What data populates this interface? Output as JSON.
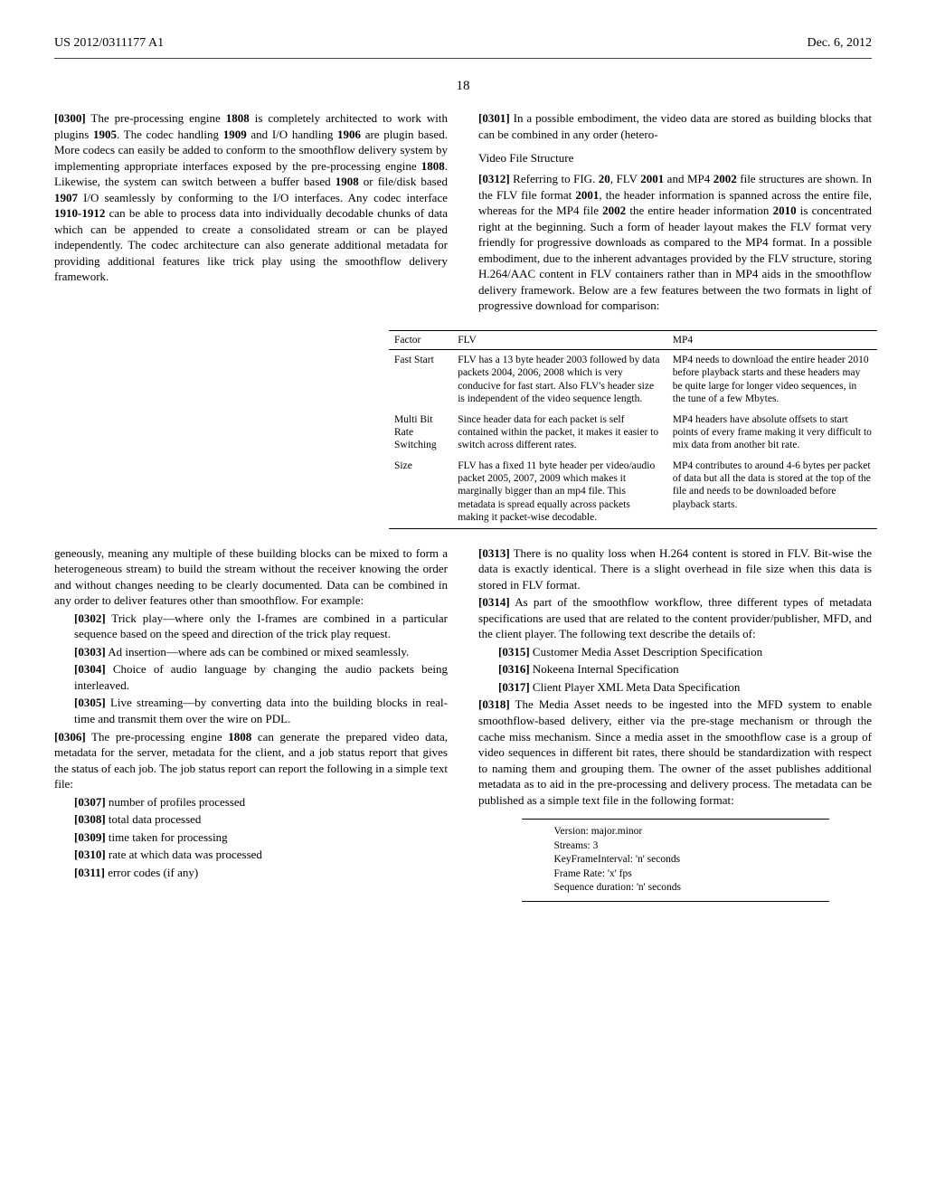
{
  "header": {
    "pub_no": "US 2012/0311177 A1",
    "date": "Dec. 6, 2012"
  },
  "page_number": "18",
  "left": {
    "p0300": "[0300]   The pre-processing engine 1808 is completely architected to work with plugins 1905. The codec handling 1909 and I/O handling 1906 are plugin based. More codecs can easily be added to conform to the smoothflow delivery system by implementing appropriate interfaces exposed by the pre-processing engine 1808. Likewise, the system can switch between a buffer based 1908 or file/disk based 1907 I/O seamlessly by conforming to the I/O interfaces. Any codec interface 1910-1912 can be able to process data into individually decodable chunks of data which can be appended to create a consolidated stream or can be played independently. The codec architecture can also generate additional metadata for providing additional features like trick play using the smoothflow delivery framework.",
    "p0301": "[0301]   In a possible embodiment, the video data are stored as building blocks that can be combined in any order (hetero-",
    "p_cont": "geneously, meaning any multiple of these building blocks can be mixed to form a heterogeneous stream) to build the stream without the receiver knowing the order and without changes needing to be clearly documented. Data can be combined in any order to deliver features other than smoothflow. For example:",
    "p0302": "[0302]   Trick play—where only the I-frames are combined in a particular sequence based on the speed and direction of the trick play request.",
    "p0303": "[0303]   Ad insertion—where ads can be combined or mixed seamlessly.",
    "p0304": "[0304]   Choice of audio language by changing the audio packets being interleaved.",
    "p0305": "[0305]   Live streaming—by converting data into the building blocks in real-time and transmit them over the wire on PDL.",
    "p0306": "[0306]   The pre-processing engine 1808 can generate the prepared video data, metadata for the server, metadata for the client, and a job status report that gives the status of each job. The job status report can report the following in a simple text file:",
    "p0307": "[0307]   number of profiles processed",
    "p0308": "[0308]   total data processed",
    "p0309": "[0309]   time taken for processing",
    "p0310": "[0310]   rate at which data was processed",
    "p0311": "[0311]   error codes (if any)"
  },
  "right": {
    "heading_vfs": "Video File Structure",
    "p0312": "[0312]   Referring to FIG. 20, FLV 2001 and MP4 2002 file structures are shown. In the FLV file format 2001, the header information is spanned across the entire file, whereas for the MP4 file 2002 the entire header information 2010 is concentrated right at the beginning. Such a form of header layout makes the FLV format very friendly for progressive downloads as compared to the MP4 format. In a possible embodiment, due to the inherent advantages provided by the FLV structure, storing H.264/AAC content in FLV containers rather than in MP4 aids in the smoothflow delivery framework. Below are a few features between the two formats in light of progressive download for comparison:",
    "p0313": "[0313]   There is no quality loss when H.264 content is stored in FLV. Bit-wise the data is exactly identical. There is a slight overhead in file size when this data is stored in FLV format.",
    "p0314": "[0314]   As part of the smoothflow workflow, three different types of metadata specifications are used that are related to the content provider/publisher, MFD, and the client player. The following text describe the details of:",
    "p0315": "[0315]   Customer Media Asset Description Specification",
    "p0316": "[0316]   Nokeena Internal Specification",
    "p0317": "[0317]   Client Player XML Meta Data Specification",
    "p0318": "[0318]   The Media Asset needs to be ingested into the MFD system to enable smoothflow-based delivery, either via the pre-stage mechanism or through the cache miss mechanism. Since a media asset in the smoothflow case is a group of video sequences in different bit rates, there should be standardization with respect to naming them and grouping them. The owner of the asset publishes additional metadata as to aid in the pre-processing and delivery process. The metadata can be published as a simple text file in the following format:",
    "meta1": "Version: major.minor",
    "meta2": "Streams: 3",
    "meta3": "KeyFrameInterval: 'n' seconds",
    "meta4": "Frame Rate: 'x' fps",
    "meta5": "Sequence duration: 'n' seconds"
  },
  "table": {
    "headers": [
      "Factor",
      "FLV",
      "MP4"
    ],
    "rows": [
      {
        "factor": "Fast Start",
        "flv": "FLV has a 13 byte header 2003 followed by data packets 2004, 2006, 2008 which is very conducive for fast start. Also FLV's header size is independent of the video sequence length.",
        "mp4": "MP4 needs to download the entire header 2010 before playback starts and these headers may be quite large for longer video sequences, in the tune of a few Mbytes."
      },
      {
        "factor": "Multi Bit Rate Switching",
        "flv": "Since header data for each packet is self contained within the packet, it makes it easier to switch across different rates.",
        "mp4": "MP4 headers have absolute offsets to start points of every frame making it very difficult to mix data from another bit rate."
      },
      {
        "factor": "Size",
        "flv": "FLV has a fixed 11 byte header per video/audio packet 2005, 2007, 2009 which makes it marginally bigger than an mp4 file.\nThis metadata is spread equally across packets making it packet-wise decodable.",
        "mp4": "MP4 contributes to around 4-6 bytes per packet of data but all the data is stored at the top of the file and needs to be downloaded before playback starts."
      }
    ]
  }
}
